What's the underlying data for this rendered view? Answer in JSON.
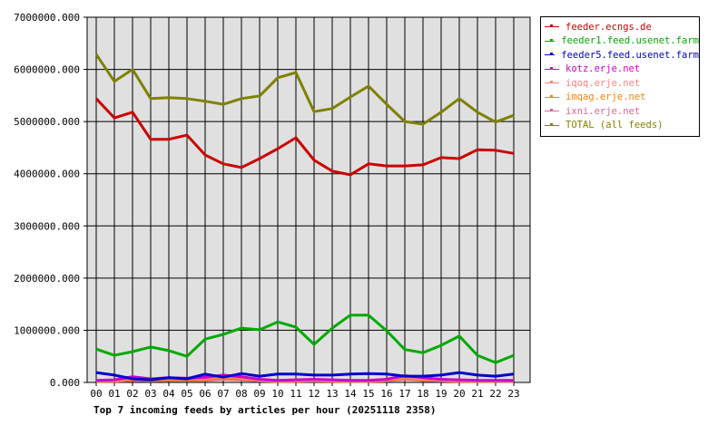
{
  "chart_data": {
    "type": "line",
    "title": "Top 7 incoming feeds by articles per hour (20251118 2358)",
    "xlabel": "",
    "ylabel": "",
    "x": [
      "00",
      "01",
      "02",
      "03",
      "04",
      "05",
      "06",
      "07",
      "08",
      "09",
      "10",
      "11",
      "12",
      "13",
      "14",
      "15",
      "16",
      "17",
      "18",
      "19",
      "20",
      "21",
      "22",
      "23"
    ],
    "ylim": [
      0,
      7000000
    ],
    "yticks": [
      "0.000",
      "1000000.000",
      "2000000.000",
      "3000000.000",
      "4000000.000",
      "5000000.000",
      "6000000.000",
      "7000000.000"
    ],
    "grid": true,
    "legend_position": "right-top",
    "series": [
      {
        "name": "feeder.ecngs.de",
        "color": "#cc0000",
        "values": [
          5440000,
          5070000,
          5180000,
          4660000,
          4660000,
          4740000,
          4360000,
          4190000,
          4120000,
          4290000,
          4480000,
          4690000,
          4260000,
          4050000,
          3980000,
          4190000,
          4150000,
          4150000,
          4170000,
          4310000,
          4290000,
          4460000,
          4450000,
          4390000
        ]
      },
      {
        "name": "feeder1.feed.usenet.farm",
        "color": "#00aa00",
        "values": [
          640000,
          520000,
          590000,
          680000,
          610000,
          500000,
          830000,
          920000,
          1040000,
          1010000,
          1160000,
          1060000,
          730000,
          1040000,
          1290000,
          1290000,
          990000,
          630000,
          570000,
          710000,
          890000,
          520000,
          380000,
          520000
        ]
      },
      {
        "name": "feeder5.feed.usenet.farm",
        "color": "#0000cc",
        "values": [
          190000,
          140000,
          70000,
          50000,
          90000,
          70000,
          160000,
          100000,
          170000,
          120000,
          160000,
          160000,
          140000,
          140000,
          160000,
          170000,
          160000,
          120000,
          120000,
          140000,
          190000,
          140000,
          120000,
          160000
        ]
      },
      {
        "name": "kotz.erje.net",
        "color": "#cc00cc",
        "values": [
          40000,
          50000,
          110000,
          70000,
          90000,
          80000,
          100000,
          140000,
          110000,
          60000,
          40000,
          50000,
          60000,
          50000,
          40000,
          40000,
          60000,
          130000,
          90000,
          60000,
          50000,
          40000,
          40000,
          40000
        ]
      },
      {
        "name": "iqoq.erje.net",
        "color": "#ff8080",
        "values": [
          30000,
          40000,
          80000,
          60000,
          70000,
          70000,
          80000,
          110000,
          90000,
          50000,
          30000,
          40000,
          50000,
          40000,
          30000,
          30000,
          50000,
          100000,
          70000,
          50000,
          40000,
          30000,
          30000,
          30000
        ]
      },
      {
        "name": "imqag.erje.net",
        "color": "#ff8000",
        "values": [
          20000,
          30000,
          60000,
          40000,
          50000,
          50000,
          60000,
          80000,
          70000,
          40000,
          20000,
          30000,
          40000,
          30000,
          20000,
          20000,
          40000,
          80000,
          50000,
          40000,
          30000,
          20000,
          20000,
          20000
        ]
      },
      {
        "name": "ixni.erje.net",
        "color": "#dd6699",
        "values": [
          20000,
          20000,
          40000,
          30000,
          40000,
          40000,
          40000,
          60000,
          50000,
          30000,
          20000,
          20000,
          30000,
          20000,
          20000,
          20000,
          30000,
          60000,
          40000,
          30000,
          20000,
          20000,
          20000,
          20000
        ]
      },
      {
        "name": "TOTAL (all feeds)",
        "color": "#808000",
        "values": [
          6290000,
          5770000,
          6000000,
          5440000,
          5460000,
          5440000,
          5390000,
          5330000,
          5440000,
          5490000,
          5840000,
          5940000,
          5190000,
          5250000,
          5470000,
          5680000,
          5330000,
          5000000,
          4950000,
          5180000,
          5440000,
          5180000,
          4990000,
          5120000
        ]
      }
    ]
  },
  "legend": {
    "items": [
      {
        "label": "feeder.ecngs.de",
        "color": "#cc0000"
      },
      {
        "label": "feeder1.feed.usenet.farm",
        "color": "#00aa00"
      },
      {
        "label": "feeder5.feed.usenet.farm",
        "color": "#0000cc"
      },
      {
        "label": "kotz.erje.net",
        "color": "#cc00cc"
      },
      {
        "label": "iqoq.erje.net",
        "color": "#ff8080"
      },
      {
        "label": "imqag.erje.net",
        "color": "#ff8000"
      },
      {
        "label": "ixni.erje.net",
        "color": "#dd6699"
      },
      {
        "label": "TOTAL (all feeds)",
        "color": "#808000"
      }
    ]
  },
  "colors": {
    "plot_background": "#e0e0e0",
    "grid": "#000000"
  }
}
